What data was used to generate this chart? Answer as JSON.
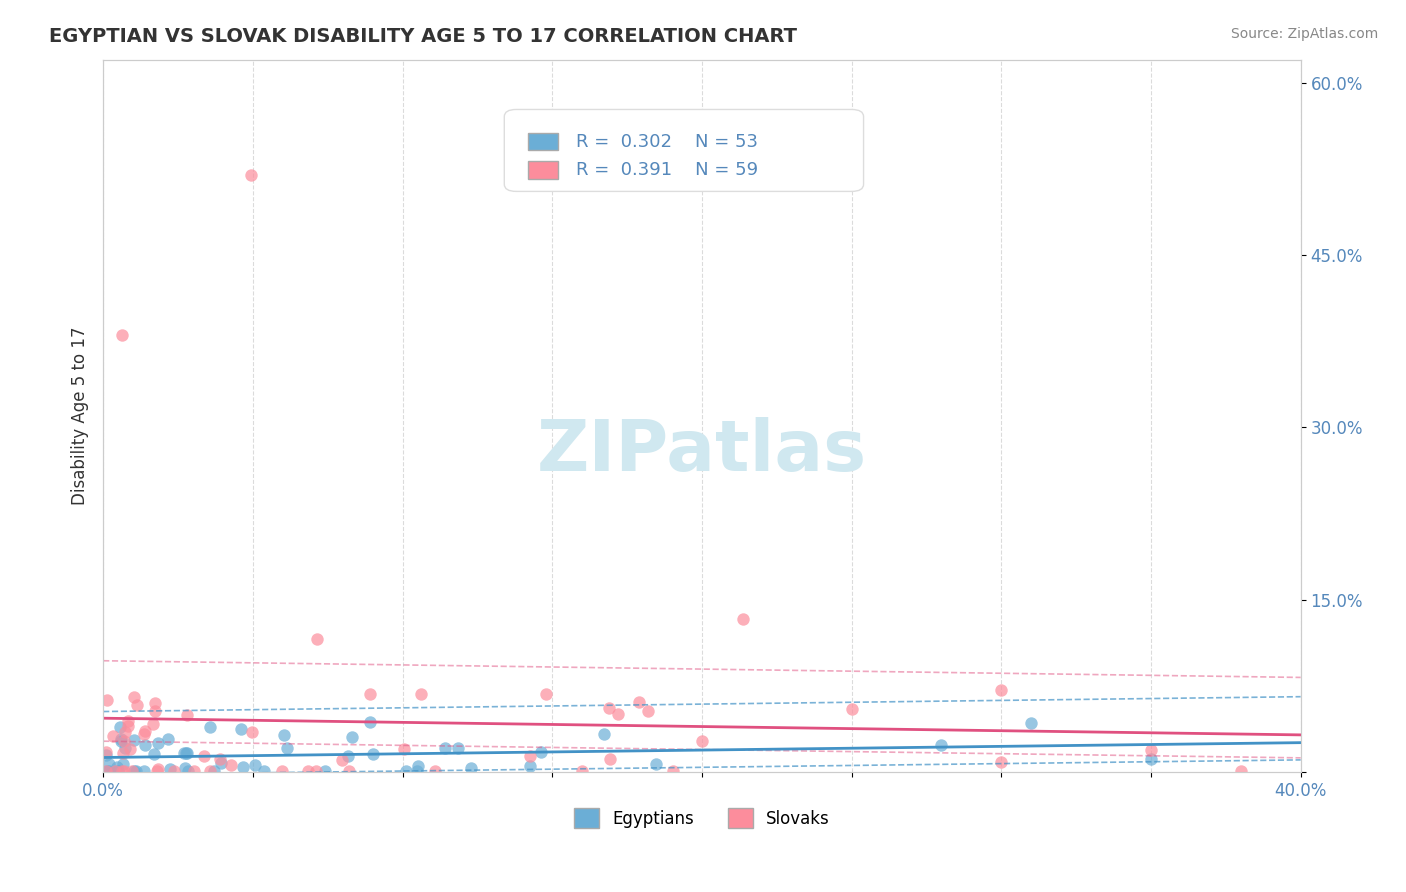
{
  "title": "EGYPTIAN VS SLOVAK DISABILITY AGE 5 TO 17 CORRELATION CHART",
  "source": "Source: ZipAtlas.com",
  "ylabel_label": "Disability Age 5 to 17",
  "xlim": [
    0.0,
    0.4
  ],
  "ylim": [
    0.0,
    0.62
  ],
  "legend1_R": "0.302",
  "legend1_N": "53",
  "legend2_R": "0.391",
  "legend2_N": "59",
  "egyptian_color": "#6baed6",
  "slovak_color": "#fc8d9c",
  "egyptian_line_color": "#4292c6",
  "slovak_line_color": "#e05080",
  "background_color": "#ffffff",
  "grid_color": "#cccccc",
  "watermark_color": "#d0e8f0"
}
